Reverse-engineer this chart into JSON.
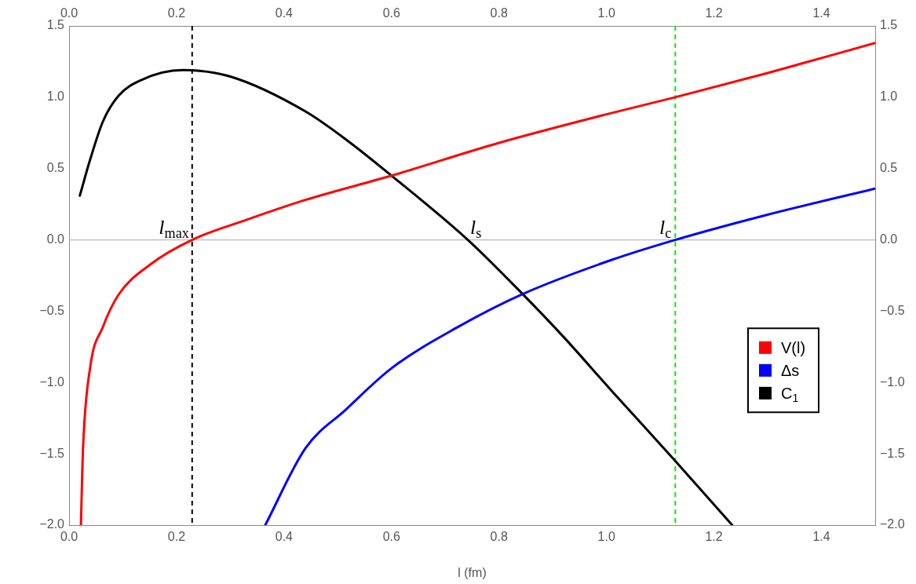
{
  "chart_data": {
    "type": "line",
    "xlabel": "l (fm)",
    "xlim": [
      0,
      1.5
    ],
    "x2lim": [
      0,
      1.5
    ],
    "ylim": [
      -2,
      1.5
    ],
    "y2lim": [
      -2,
      1.5
    ],
    "xticks": [
      {
        "value": 0,
        "label": "0.0"
      },
      {
        "value": 0.2,
        "label": "0.2"
      },
      {
        "value": 0.4,
        "label": "0.4"
      },
      {
        "value": 0.6,
        "label": "0.6"
      },
      {
        "value": 0.8,
        "label": "0.8"
      },
      {
        "value": 1,
        "label": "1.0"
      },
      {
        "value": 1.2,
        "label": "1.2"
      },
      {
        "value": 1.4,
        "label": "1.4"
      }
    ],
    "x2ticks": [
      {
        "value": 0,
        "label": "0.0"
      },
      {
        "value": 0.2,
        "label": "0.2"
      },
      {
        "value": 0.4,
        "label": "0.4"
      },
      {
        "value": 0.6,
        "label": "0.6"
      },
      {
        "value": 0.8,
        "label": "0.8"
      },
      {
        "value": 1,
        "label": "1.0"
      },
      {
        "value": 1.2,
        "label": "1.2"
      },
      {
        "value": 1.4,
        "label": "1.4"
      }
    ],
    "yticks": [
      {
        "value": -2,
        "label": "−2.0"
      },
      {
        "value": -1.5,
        "label": "−1.5"
      },
      {
        "value": -1,
        "label": "−1.0"
      },
      {
        "value": -0.5,
        "label": "−0.5"
      },
      {
        "value": 0,
        "label": "0.0"
      },
      {
        "value": 0.5,
        "label": "0.5"
      },
      {
        "value": 1,
        "label": "1.0"
      },
      {
        "value": 1.5,
        "label": "1.5"
      }
    ],
    "y2ticks": [
      {
        "value": -2,
        "label": "−2.0"
      },
      {
        "value": -1.5,
        "label": "−1.5"
      },
      {
        "value": -1,
        "label": "−1.0"
      },
      {
        "value": -0.5,
        "label": "−0.5"
      },
      {
        "value": 0,
        "label": "0.0"
      },
      {
        "value": 0.5,
        "label": "0.5"
      },
      {
        "value": 1,
        "label": "1.0"
      },
      {
        "value": 1.5,
        "label": "1.5"
      }
    ],
    "series": [
      {
        "name": "V(l)",
        "color": "#ff0000",
        "x": [
          0.022,
          0.026,
          0.039,
          0.063,
          0.092,
          0.152,
          0.229,
          0.33,
          0.44,
          0.6,
          0.8,
          1.0,
          1.128,
          1.3,
          1.5
        ],
        "values": [
          -2,
          -1.46,
          -0.9,
          -0.61,
          -0.385,
          -0.17,
          0,
          0.14,
          0.28,
          0.45,
          0.68,
          0.88,
          1.0,
          1.17,
          1.38
        ]
      },
      {
        "name": "Δs",
        "color": "#0000ff",
        "x": [
          0.365,
          0.44,
          0.515,
          0.6,
          0.724,
          0.844,
          1.01,
          1.128,
          1.293,
          1.5
        ],
        "values": [
          -2,
          -1.46,
          -1.19,
          -0.9,
          -0.61,
          -0.38,
          -0.14,
          0,
          0.17,
          0.36
        ]
      },
      {
        "name": "C$_{1}$",
        "color": "#000000",
        "x": [
          0.02,
          0.039,
          0.063,
          0.092,
          0.134,
          0.212,
          0.3,
          0.44,
          0.52,
          0.6,
          0.742,
          0.844,
          0.92,
          1.01,
          1.128,
          1.234
        ],
        "values": [
          0.31,
          0.56,
          0.83,
          1.01,
          1.12,
          1.19,
          1.145,
          0.9,
          0.69,
          0.45,
          0,
          -0.38,
          -0.68,
          -1.06,
          -1.55,
          -2
        ]
      }
    ],
    "ref_lines": [
      {
        "axis": "y",
        "value": 0,
        "color": "#bbbbbb",
        "line_style": "solid"
      },
      {
        "axis": "x",
        "value": 0.229,
        "color": "#000000",
        "line_style": "dashed"
      },
      {
        "axis": "x",
        "value": 1.128,
        "color": "#00ee00",
        "line_style": "dashed"
      }
    ],
    "annotations": [
      {
        "text": "l$_{max}$",
        "x": 0.229,
        "y": 0
      },
      {
        "text": "l$_{s}$",
        "x": 0.742,
        "y": 0
      },
      {
        "text": "l$_{c}$",
        "x": 1.128,
        "y": 0
      }
    ],
    "legend": "right",
    "grid": false,
    "marker": "none",
    "line_style": "solid"
  }
}
